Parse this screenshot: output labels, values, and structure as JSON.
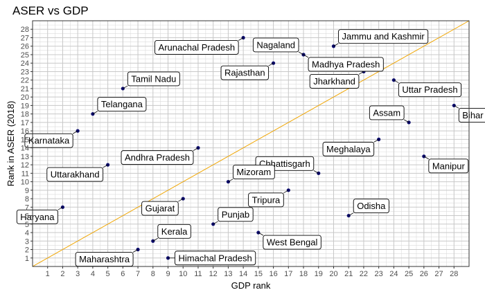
{
  "chart_data": {
    "type": "scatter",
    "title": "ASER vs GDP",
    "xlabel": "GDP rank",
    "ylabel": "Rank in ASER (2018)",
    "xlim": [
      0,
      29
    ],
    "ylim": [
      0,
      29
    ],
    "xticks": [
      1,
      2,
      3,
      4,
      5,
      6,
      7,
      8,
      9,
      10,
      11,
      12,
      13,
      14,
      15,
      16,
      17,
      18,
      19,
      20,
      21,
      22,
      23,
      24,
      25,
      26,
      27,
      28
    ],
    "yticks": [
      1,
      2,
      3,
      4,
      5,
      6,
      7,
      8,
      9,
      10,
      11,
      12,
      13,
      14,
      15,
      16,
      17,
      18,
      19,
      20,
      21,
      22,
      23,
      24,
      25,
      26,
      27,
      28
    ],
    "grid": true,
    "reference_line": {
      "type": "y=x",
      "color": "#f0a500"
    },
    "point_color": "#0b0b6b",
    "points": [
      {
        "label": "Arunachal Pradesh",
        "x": 14,
        "y": 27,
        "dir": "lower-left"
      },
      {
        "label": "Nagaland",
        "x": 18,
        "y": 25,
        "dir": "upper-left"
      },
      {
        "label": "Jammu and Kashmir",
        "x": 20,
        "y": 26,
        "dir": "upper-right"
      },
      {
        "label": "Madhya Pradesh",
        "x": 18,
        "y": 25,
        "dir": "lower-right"
      },
      {
        "label": "Rajasthan",
        "x": 16,
        "y": 24,
        "dir": "lower-left"
      },
      {
        "label": "Tamil Nadu",
        "x": 6,
        "y": 21,
        "dir": "upper-right"
      },
      {
        "label": "Jharkhand",
        "x": 22,
        "y": 23,
        "dir": "lower-left"
      },
      {
        "label": "Uttar Pradesh",
        "x": 24,
        "y": 22,
        "dir": "lower-right"
      },
      {
        "label": "Telangana",
        "x": 4,
        "y": 18,
        "dir": "upper-right"
      },
      {
        "label": "Bihar",
        "x": 28,
        "y": 19,
        "dir": "lower-right"
      },
      {
        "label": "Assam",
        "x": 25,
        "y": 17,
        "dir": "upper-left"
      },
      {
        "label": "Karnataka",
        "x": 3,
        "y": 16,
        "dir": "lower-left"
      },
      {
        "label": "Meghalaya",
        "x": 23,
        "y": 15,
        "dir": "lower-left"
      },
      {
        "label": "Andhra Pradesh",
        "x": 11,
        "y": 14,
        "dir": "lower-left"
      },
      {
        "label": "Uttarakhand",
        "x": 5,
        "y": 12,
        "dir": "lower-left"
      },
      {
        "label": "Chhattisgarh",
        "x": 19,
        "y": 11,
        "dir": "upper-left"
      },
      {
        "label": "Manipur",
        "x": 26,
        "y": 13,
        "dir": "lower-right"
      },
      {
        "label": "Mizoram",
        "x": 13,
        "y": 10,
        "dir": "upper-right"
      },
      {
        "label": "Tripura",
        "x": 17,
        "y": 9,
        "dir": "lower-left"
      },
      {
        "label": "Gujarat",
        "x": 10,
        "y": 8,
        "dir": "lower-left"
      },
      {
        "label": "Haryana",
        "x": 2,
        "y": 7,
        "dir": "lower-left"
      },
      {
        "label": "Odisha",
        "x": 21,
        "y": 6,
        "dir": "upper-right"
      },
      {
        "label": "Punjab",
        "x": 12,
        "y": 5,
        "dir": "upper-right"
      },
      {
        "label": "Kerala",
        "x": 8,
        "y": 3,
        "dir": "upper-right"
      },
      {
        "label": "West Bengal",
        "x": 15,
        "y": 4,
        "dir": "lower-right"
      },
      {
        "label": "Maharashtra",
        "x": 7,
        "y": 2,
        "dir": "lower-left"
      },
      {
        "label": "Himachal Pradesh",
        "x": 9,
        "y": 1,
        "dir": "right"
      }
    ]
  }
}
